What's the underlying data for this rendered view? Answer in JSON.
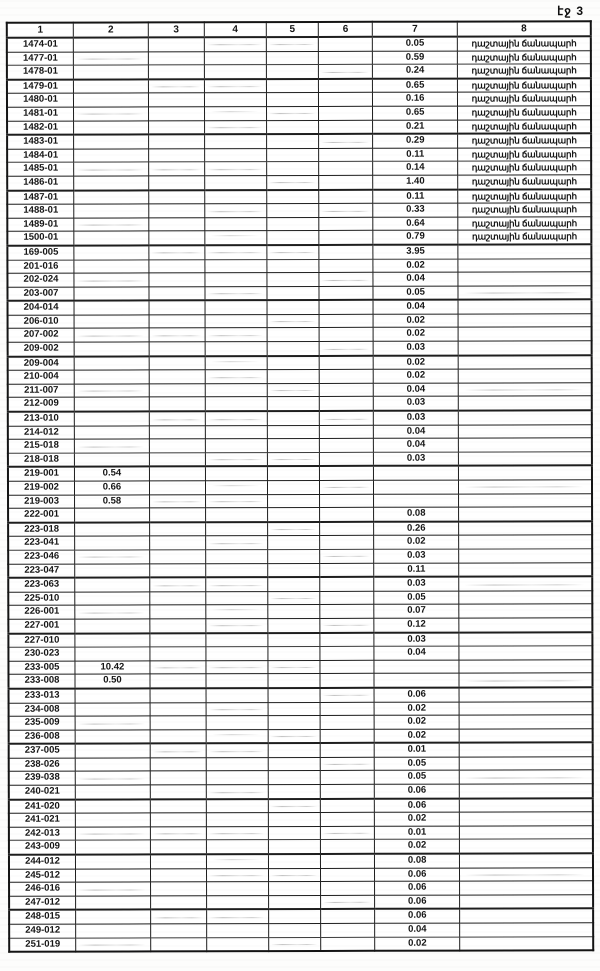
{
  "page": {
    "label": "էջ 3"
  },
  "table": {
    "column_headers": [
      "1",
      "2",
      "3",
      "4",
      "5",
      "6",
      "7",
      "8"
    ],
    "road_type_label": "դաշտային ճանապարհ",
    "rows": [
      [
        "1474-01",
        "",
        "",
        "",
        "",
        "",
        "0.05",
        "դաշտային ճանապարհ"
      ],
      [
        "1477-01",
        "",
        "",
        "",
        "",
        "",
        "0.59",
        "դաշտային ճանապարհ"
      ],
      [
        "1478-01",
        "",
        "",
        "",
        "",
        "",
        "0.24",
        "դաշտային ճանապարհ"
      ],
      [
        "1479-01",
        "",
        "",
        "",
        "",
        "",
        "0.65",
        "դաշտային ճանապարհ"
      ],
      [
        "1480-01",
        "",
        "",
        "",
        "",
        "",
        "0.16",
        "դաշտային ճանապարհ"
      ],
      [
        "1481-01",
        "",
        "",
        "",
        "",
        "",
        "0.65",
        "դաշտային ճանապարհ"
      ],
      [
        "1482-01",
        "",
        "",
        "",
        "",
        "",
        "0.21",
        "դաշտային ճանապարհ"
      ],
      [
        "1483-01",
        "",
        "",
        "",
        "",
        "",
        "0.29",
        "դաշտային ճանապարհ"
      ],
      [
        "1484-01",
        "",
        "",
        "",
        "",
        "",
        "0.11",
        "դաշտային ճանապարհ"
      ],
      [
        "1485-01",
        "",
        "",
        "",
        "",
        "",
        "0.14",
        "դաշտային ճանապարհ"
      ],
      [
        "1486-01",
        "",
        "",
        "",
        "",
        "",
        "1.40",
        "դաշտային ճանապարհ"
      ],
      [
        "1487-01",
        "",
        "",
        "",
        "",
        "",
        "0.11",
        "դաշտային ճանապարհ"
      ],
      [
        "1488-01",
        "",
        "",
        "",
        "",
        "",
        "0.33",
        "դաշտային ճանապարհ"
      ],
      [
        "1489-01",
        "",
        "",
        "",
        "",
        "",
        "0.64",
        "դաշտային ճանապարհ"
      ],
      [
        "1500-01",
        "",
        "",
        "",
        "",
        "",
        "0.79",
        "դաշտային ճանապարհ"
      ],
      [
        "169-005",
        "",
        "",
        "",
        "",
        "",
        "3.95",
        ""
      ],
      [
        "201-016",
        "",
        "",
        "",
        "",
        "",
        "0.02",
        ""
      ],
      [
        "202-024",
        "",
        "",
        "",
        "",
        "",
        "0.04",
        ""
      ],
      [
        "203-007",
        "",
        "",
        "",
        "",
        "",
        "0.05",
        ""
      ],
      [
        "204-014",
        "",
        "",
        "",
        "",
        "",
        "0.04",
        ""
      ],
      [
        "206-010",
        "",
        "",
        "",
        "",
        "",
        "0.02",
        ""
      ],
      [
        "207-002",
        "",
        "",
        "",
        "",
        "",
        "0.02",
        ""
      ],
      [
        "209-002",
        "",
        "",
        "",
        "",
        "",
        "0.03",
        ""
      ],
      [
        "209-004",
        "",
        "",
        "",
        "",
        "",
        "0.02",
        ""
      ],
      [
        "210-004",
        "",
        "",
        "",
        "",
        "",
        "0.02",
        ""
      ],
      [
        "211-007",
        "",
        "",
        "",
        "",
        "",
        "0.04",
        ""
      ],
      [
        "212-009",
        "",
        "",
        "",
        "",
        "",
        "0.03",
        ""
      ],
      [
        "213-010",
        "",
        "",
        "",
        "",
        "",
        "0.03",
        ""
      ],
      [
        "214-012",
        "",
        "",
        "",
        "",
        "",
        "0.04",
        ""
      ],
      [
        "215-018",
        "",
        "",
        "",
        "",
        "",
        "0.04",
        ""
      ],
      [
        "218-018",
        "",
        "",
        "",
        "",
        "",
        "0.03",
        ""
      ],
      [
        "219-001",
        "0.54",
        "",
        "",
        "",
        "",
        "",
        ""
      ],
      [
        "219-002",
        "0.66",
        "",
        "",
        "",
        "",
        "",
        ""
      ],
      [
        "219-003",
        "0.58",
        "",
        "",
        "",
        "",
        "",
        ""
      ],
      [
        "222-001",
        "",
        "",
        "",
        "",
        "",
        "0.08",
        ""
      ],
      [
        "223-018",
        "",
        "",
        "",
        "",
        "",
        "0.26",
        ""
      ],
      [
        "223-041",
        "",
        "",
        "",
        "",
        "",
        "0.02",
        ""
      ],
      [
        "223-046",
        "",
        "",
        "",
        "",
        "",
        "0.03",
        ""
      ],
      [
        "223-047",
        "",
        "",
        "",
        "",
        "",
        "0.11",
        ""
      ],
      [
        "223-063",
        "",
        "",
        "",
        "",
        "",
        "0.03",
        ""
      ],
      [
        "225-010",
        "",
        "",
        "",
        "",
        "",
        "0.05",
        ""
      ],
      [
        "226-001",
        "",
        "",
        "",
        "",
        "",
        "0.07",
        ""
      ],
      [
        "227-001",
        "",
        "",
        "",
        "",
        "",
        "0.12",
        ""
      ],
      [
        "227-010",
        "",
        "",
        "",
        "",
        "",
        "0.03",
        ""
      ],
      [
        "230-023",
        "",
        "",
        "",
        "",
        "",
        "0.04",
        ""
      ],
      [
        "233-005",
        "10.42",
        "",
        "",
        "",
        "",
        "",
        ""
      ],
      [
        "233-008",
        "0.50",
        "",
        "",
        "",
        "",
        "",
        ""
      ],
      [
        "233-013",
        "",
        "",
        "",
        "",
        "",
        "0.06",
        ""
      ],
      [
        "234-008",
        "",
        "",
        "",
        "",
        "",
        "0.02",
        ""
      ],
      [
        "235-009",
        "",
        "",
        "",
        "",
        "",
        "0.02",
        ""
      ],
      [
        "236-008",
        "",
        "",
        "",
        "",
        "",
        "0.02",
        ""
      ],
      [
        "237-005",
        "",
        "",
        "",
        "",
        "",
        "0.01",
        ""
      ],
      [
        "238-026",
        "",
        "",
        "",
        "",
        "",
        "0.05",
        ""
      ],
      [
        "239-038",
        "",
        "",
        "",
        "",
        "",
        "0.05",
        ""
      ],
      [
        "240-021",
        "",
        "",
        "",
        "",
        "",
        "0.06",
        ""
      ],
      [
        "241-020",
        "",
        "",
        "",
        "",
        "",
        "0.06",
        ""
      ],
      [
        "241-021",
        "",
        "",
        "",
        "",
        "",
        "0.02",
        ""
      ],
      [
        "242-013",
        "",
        "",
        "",
        "",
        "",
        "0.01",
        ""
      ],
      [
        "243-009",
        "",
        "",
        "",
        "",
        "",
        "0.02",
        ""
      ],
      [
        "244-012",
        "",
        "",
        "",
        "",
        "",
        "0.08",
        ""
      ],
      [
        "245-012",
        "",
        "",
        "",
        "",
        "",
        "0.06",
        ""
      ],
      [
        "246-016",
        "",
        "",
        "",
        "",
        "",
        "0.06",
        ""
      ],
      [
        "247-012",
        "",
        "",
        "",
        "",
        "",
        "0.06",
        ""
      ],
      [
        "248-015",
        "",
        "",
        "",
        "",
        "",
        "0.06",
        ""
      ],
      [
        "249-012",
        "",
        "",
        "",
        "",
        "",
        "0.04",
        ""
      ],
      [
        "251-019",
        "",
        "",
        "",
        "",
        "",
        "0.02",
        ""
      ]
    ]
  }
}
